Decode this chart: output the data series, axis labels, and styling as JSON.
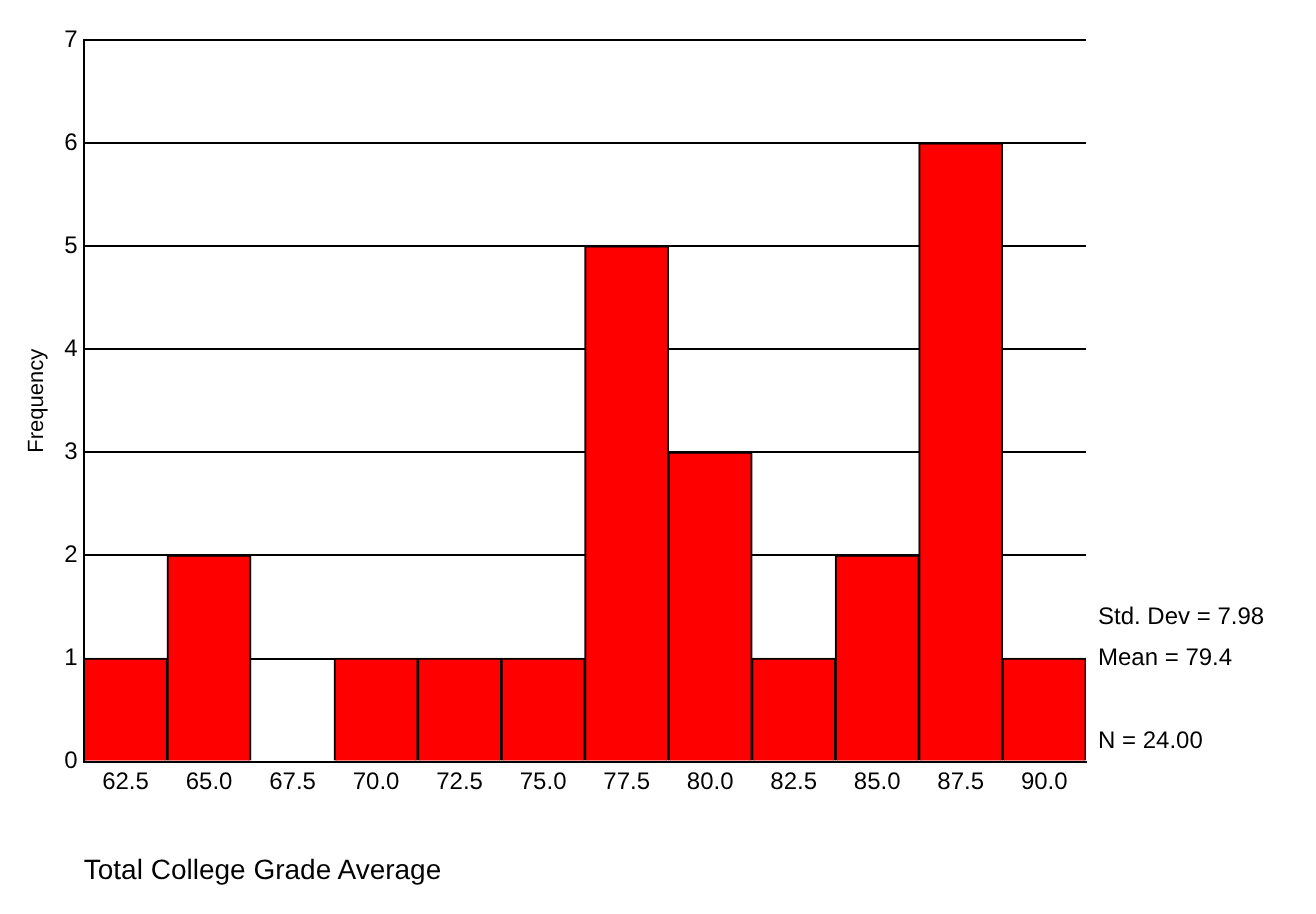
{
  "chart_data": {
    "type": "histogram",
    "xlabel": "Total College Grade Average",
    "ylabel": "Frequency",
    "bins": [
      61.25,
      63.75,
      66.25,
      68.75,
      71.25,
      73.75,
      76.25,
      78.75,
      81.25,
      83.75,
      86.25,
      88.75,
      91.25
    ],
    "values": [
      1,
      2,
      0,
      1,
      1,
      1,
      5,
      3,
      1,
      2,
      6,
      1
    ],
    "color": "#ff0000",
    "xlim": [
      61.25,
      91.25
    ],
    "xticks": [
      62.5,
      {
        "value": 65,
        "label": "65.0"
      },
      67.5,
      {
        "value": 70,
        "label": "70.0"
      },
      72.5,
      {
        "value": 75,
        "label": "75.0"
      },
      77.5,
      {
        "value": 80,
        "label": "80.0"
      },
      82.5,
      {
        "value": 85,
        "label": "85.0"
      },
      87.5,
      {
        "value": 90,
        "label": "90.0"
      }
    ],
    "ylim": [
      0,
      7
    ],
    "yticks": [
      0,
      1,
      2,
      3,
      4,
      5,
      6,
      7
    ],
    "grid": "y",
    "legend": false,
    "annotations": [
      "Std. Dev = 7.98",
      "Mean = 79.4",
      "N = 24.00"
    ]
  }
}
